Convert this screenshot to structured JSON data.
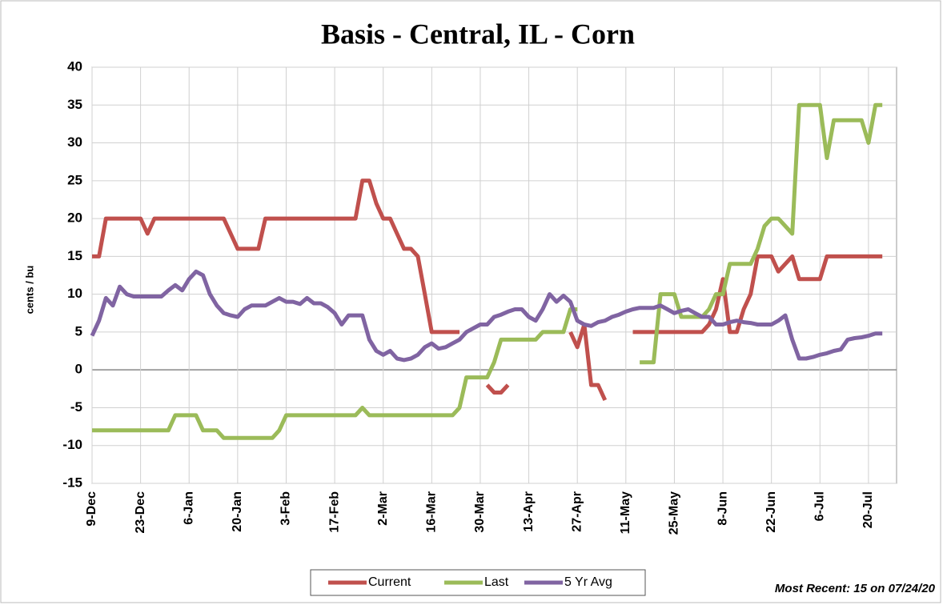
{
  "chart_data": {
    "type": "line",
    "title": "Basis - Central, IL - Corn",
    "ylabel": "cents / bu",
    "annotation": "Most Recent: 15 on 07/24/20",
    "categories": [
      "9-Dec",
      null,
      null,
      null,
      null,
      null,
      null,
      "23-Dec",
      null,
      null,
      null,
      null,
      null,
      null,
      "6-Jan",
      null,
      null,
      null,
      null,
      null,
      null,
      "20-Jan",
      null,
      null,
      null,
      null,
      null,
      null,
      "3-Feb",
      null,
      null,
      null,
      null,
      null,
      null,
      "17-Feb",
      null,
      null,
      null,
      null,
      null,
      null,
      "2-Mar",
      null,
      null,
      null,
      null,
      null,
      null,
      "16-Mar",
      null,
      null,
      null,
      null,
      null,
      null,
      "30-Mar",
      null,
      null,
      null,
      null,
      null,
      null,
      "13-Apr",
      null,
      null,
      null,
      null,
      null,
      null,
      "27-Apr",
      null,
      null,
      null,
      null,
      null,
      null,
      "11-May",
      null,
      null,
      null,
      null,
      null,
      null,
      "25-May",
      null,
      null,
      null,
      null,
      null,
      null,
      "8-Jun",
      null,
      null,
      null,
      null,
      null,
      null,
      "22-Jun",
      null,
      null,
      null,
      null,
      null,
      null,
      "6-Jul",
      null,
      null,
      null,
      null,
      null,
      null,
      "20-Jul",
      null,
      null
    ],
    "series": [
      {
        "name": "Current",
        "color": "#c0504d",
        "values": [
          15,
          15,
          20,
          20,
          20,
          20,
          20,
          20,
          18,
          20,
          20,
          20,
          20,
          20,
          20,
          20,
          20,
          20,
          20,
          20,
          18,
          16,
          16,
          16,
          16,
          20,
          20,
          20,
          20,
          20,
          20,
          20,
          20,
          20,
          20,
          20,
          20,
          20,
          20,
          25,
          25,
          22,
          20,
          20,
          18,
          16,
          16,
          15,
          10,
          5,
          5,
          5,
          5,
          5,
          null,
          null,
          null,
          -2,
          -3,
          -3,
          -2,
          null,
          null,
          null,
          null,
          null,
          null,
          null,
          null,
          5,
          3,
          6,
          -2,
          -2,
          -4,
          null,
          null,
          null,
          5,
          5,
          5,
          5,
          5,
          5,
          5,
          5,
          5,
          5,
          5,
          6,
          8,
          12,
          5,
          5,
          8,
          10,
          15,
          15,
          15,
          13,
          14,
          15,
          12,
          12,
          12,
          12,
          15,
          15,
          15,
          15,
          15,
          15,
          15,
          15,
          15
        ]
      },
      {
        "name": "Last",
        "color": "#9bbb59",
        "values": [
          -8,
          -8,
          -8,
          -8,
          -8,
          -8,
          -8,
          -8,
          -8,
          -8,
          -8,
          -8,
          -6,
          -6,
          -6,
          -6,
          -8,
          -8,
          -8,
          -9,
          -9,
          -9,
          -9,
          -9,
          -9,
          -9,
          -9,
          -8,
          -6,
          -6,
          -6,
          -6,
          -6,
          -6,
          -6,
          -6,
          -6,
          -6,
          -6,
          -5,
          -6,
          -6,
          -6,
          -6,
          -6,
          -6,
          -6,
          -6,
          -6,
          -6,
          -6,
          -6,
          -6,
          -5,
          -1,
          -1,
          -1,
          -1,
          1,
          4,
          4,
          4,
          4,
          4,
          4,
          5,
          5,
          5,
          5,
          8,
          8,
          null,
          null,
          null,
          null,
          null,
          null,
          null,
          null,
          1,
          1,
          1,
          10,
          10,
          10,
          7,
          7,
          7,
          7,
          8,
          10,
          10,
          14,
          14,
          14,
          14,
          16,
          19,
          20,
          20,
          19,
          18,
          35,
          35,
          35,
          35,
          28,
          33,
          33,
          33,
          33,
          33,
          30,
          35,
          35
        ]
      },
      {
        "name": "5 Yr Avg",
        "color": "#8064a2",
        "values": [
          4.5,
          6.5,
          9.5,
          8.5,
          11,
          10,
          9.7,
          9.7,
          9.7,
          9.7,
          9.7,
          10.5,
          11.2,
          10.5,
          12,
          13,
          12.5,
          10,
          8.5,
          7.5,
          7.2,
          7,
          8,
          8.5,
          8.5,
          8.5,
          9,
          9.5,
          9,
          9,
          8.7,
          9.5,
          8.8,
          8.8,
          8.3,
          7.5,
          6,
          7.2,
          7.2,
          7.2,
          4,
          2.5,
          2,
          2.5,
          1.5,
          1.3,
          1.5,
          2,
          3,
          3.5,
          2.8,
          3,
          3.5,
          4,
          5,
          5.5,
          6,
          6,
          7,
          7.3,
          7.7,
          8,
          8,
          7,
          6.5,
          8,
          10,
          9,
          9.8,
          9,
          6.5,
          6,
          5.8,
          6.3,
          6.5,
          7,
          7.3,
          7.7,
          8,
          8.2,
          8.2,
          8.2,
          8.5,
          8,
          7.5,
          7.8,
          8,
          7.5,
          7,
          7,
          6,
          6,
          6.3,
          6.5,
          6.3,
          6.2,
          6,
          6,
          6,
          6.5,
          7.2,
          4,
          1.5,
          1.5,
          1.7,
          2,
          2.2,
          2.5,
          2.7,
          4,
          4.2,
          4.3,
          4.5,
          4.8,
          4.8
        ]
      }
    ],
    "ylim": [
      -15,
      40
    ],
    "yticks": [
      -15,
      -10,
      -5,
      0,
      5,
      10,
      15,
      20,
      25,
      30,
      35,
      40
    ],
    "grid": true
  }
}
